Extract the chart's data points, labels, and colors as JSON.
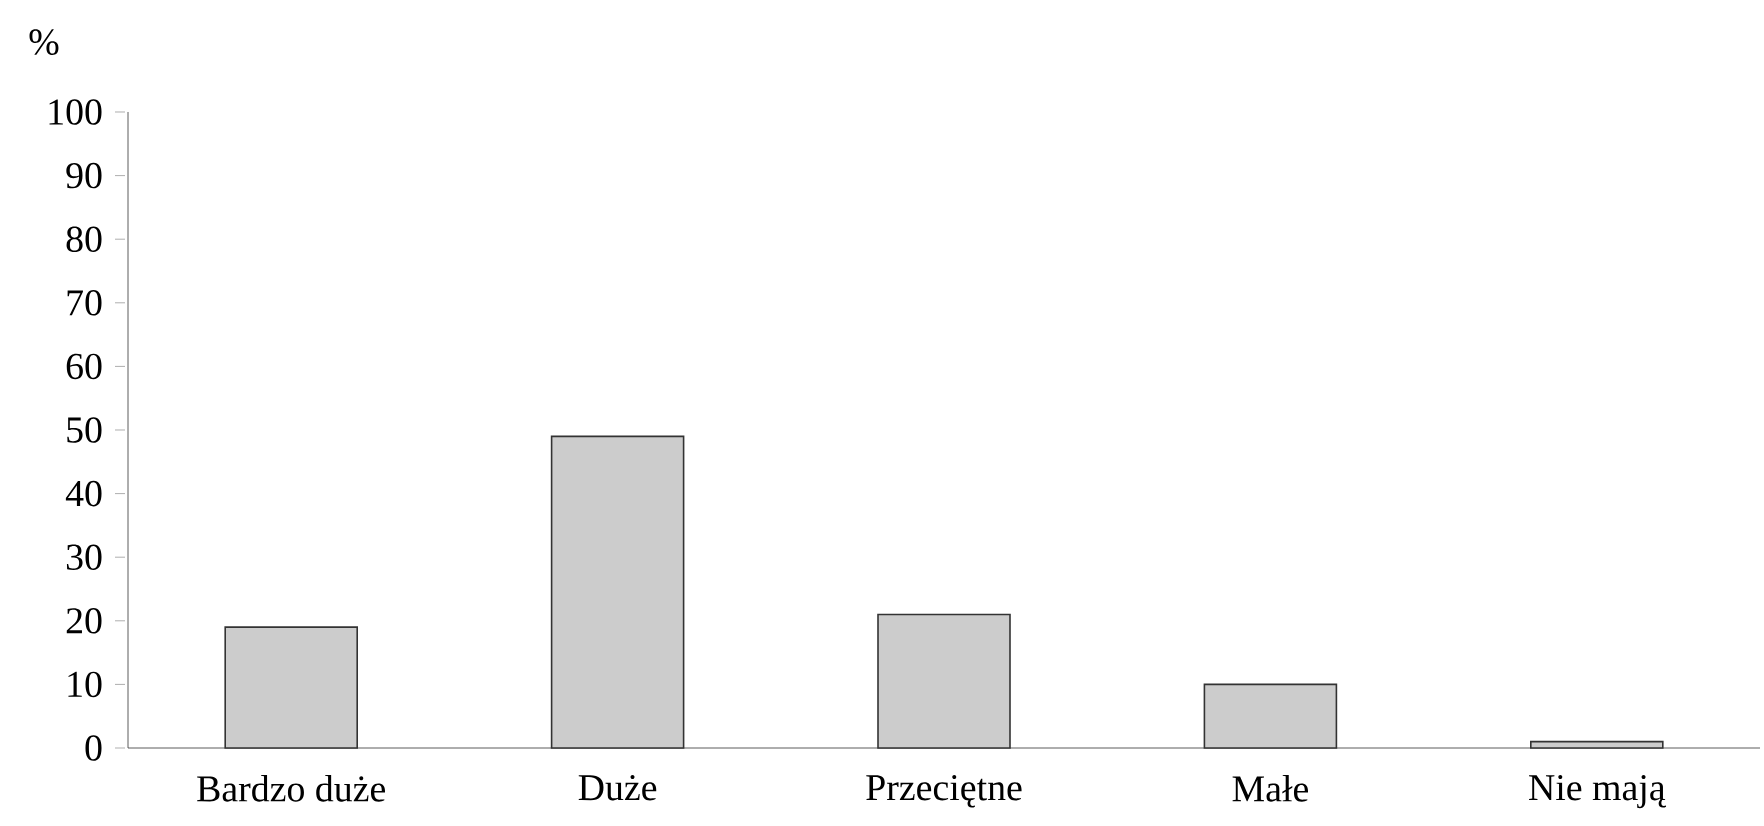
{
  "chart_data": {
    "type": "bar",
    "ylabel": "%",
    "categories": [
      "Bardzo duże",
      "Duże",
      "Przeciętne",
      "Małe",
      "Nie mają"
    ],
    "values": [
      19,
      49,
      21,
      10,
      1
    ],
    "color": "#cccccc",
    "ylim": [
      0,
      100
    ],
    "yticks": [
      0,
      10,
      20,
      30,
      40,
      50,
      60,
      70,
      80,
      90,
      100
    ],
    "grid": false
  }
}
